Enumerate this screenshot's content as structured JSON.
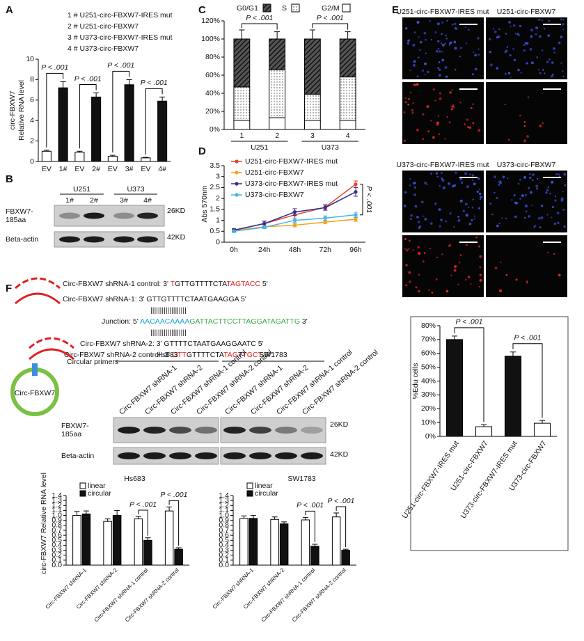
{
  "chart_data": [
    {
      "type": "bar",
      "label": "A",
      "legend": [
        "1 # U251-circ-FBXW7-IRES mut",
        "2 # U251-circ-FBXW7",
        "3 # U373-circ-FBXW7-IRES mut",
        "4 # U373-circ-FBXW7"
      ],
      "ylabel": [
        "circ-FBXW7",
        "Relative RNA level"
      ],
      "categories": [
        "EV",
        "1#",
        "EV",
        "2#",
        "EV",
        "3#",
        "EV",
        "4#"
      ],
      "values": [
        1.0,
        7.2,
        0.9,
        6.3,
        0.5,
        7.5,
        0.35,
        5.9
      ],
      "errors": [
        0.1,
        0.6,
        0.1,
        0.4,
        0.1,
        0.5,
        0.05,
        0.4
      ],
      "colors": [
        "#ffffff",
        "#111111",
        "#ffffff",
        "#111111",
        "#ffffff",
        "#111111",
        "#ffffff",
        "#111111"
      ],
      "ylim": [
        0,
        10
      ],
      "yticks": [
        0,
        2,
        4,
        6,
        8,
        10
      ],
      "annotations": [
        "P < .001",
        "P < .001",
        "P < .001",
        "P < .001"
      ]
    },
    {
      "type": "stacked_bar",
      "label": "C",
      "categories": [
        "1",
        "2",
        "3",
        "4"
      ],
      "groups": [
        "U251",
        "U373"
      ],
      "series": [
        {
          "name": "G0/G1",
          "pattern": "hatch",
          "color": "#333333",
          "values": [
            53,
            34,
            61,
            42
          ],
          "errors": [
            10,
            8,
            10,
            8
          ]
        },
        {
          "name": "S",
          "pattern": "dots",
          "color": "#ffffff",
          "values": [
            37,
            53,
            29,
            48
          ],
          "errors": [
            6,
            8,
            4,
            6
          ]
        },
        {
          "name": "G2/M",
          "pattern": "none",
          "color": "#ffffff",
          "values": [
            10,
            13,
            10,
            10
          ],
          "errors": [
            1,
            2,
            1,
            1
          ]
        }
      ],
      "ylim": [
        0,
        120
      ],
      "yticks": [
        {
          "value": 0,
          "label": "0%"
        },
        {
          "value": 20,
          "label": "20%"
        },
        {
          "value": 40,
          "label": "40%"
        },
        {
          "value": 60,
          "label": "60%"
        },
        {
          "value": 80,
          "label": "80%"
        },
        {
          "value": 100,
          "label": "100%"
        },
        {
          "value": 120,
          "label": "120%"
        }
      ],
      "annotations": [
        "P < .001",
        "P < .001"
      ]
    },
    {
      "type": "line",
      "label": "D",
      "ylabel": "Abs 570nm",
      "categories": [
        "0h",
        "24h",
        "48h",
        "72h",
        "96h"
      ],
      "series": [
        {
          "name": "U251-circ-FBXW7-IRES mut",
          "color": "#e8412c",
          "values": [
            0.55,
            0.85,
            1.25,
            1.6,
            2.65
          ],
          "errors": [
            0.08,
            0.1,
            0.15,
            0.12,
            0.15
          ]
        },
        {
          "name": "U251-circ-FBXW7",
          "color": "#f7a21b",
          "values": [
            0.55,
            0.7,
            0.78,
            0.92,
            1.05
          ],
          "errors": [
            0.05,
            0.06,
            0.08,
            0.08,
            0.1
          ]
        },
        {
          "name": "U373-circ-FBXW7-IRES mut",
          "color": "#2d3194",
          "values": [
            0.55,
            0.85,
            1.38,
            1.58,
            2.3
          ],
          "errors": [
            0.06,
            0.12,
            0.15,
            0.12,
            0.2
          ]
        },
        {
          "name": "U373-circ-FBXW7",
          "color": "#45b3e7",
          "values": [
            0.5,
            0.68,
            1.0,
            1.1,
            1.25
          ],
          "errors": [
            0.05,
            0.06,
            0.1,
            0.1,
            0.12
          ]
        }
      ],
      "ylim": [
        0,
        3.5
      ],
      "yticks": [
        0,
        0.5,
        1,
        1.5,
        2,
        2.5,
        3,
        3.5
      ],
      "annotations": [
        "P < .001"
      ]
    },
    {
      "type": "bar",
      "ylabel": "%Edu cells",
      "categories": [
        "U251-circ-FBXW7-IRES mut",
        "U251-circ-FBXW7",
        "U373-circ-FBXW7-IRES mut",
        "U373-circ-FBXW7"
      ],
      "values": [
        70,
        7,
        58,
        9.5
      ],
      "errors": [
        2.5,
        1.5,
        3,
        2
      ],
      "colors": [
        "#111111",
        "#ffffff",
        "#111111",
        "#ffffff"
      ],
      "ylim": [
        0,
        80
      ],
      "yticks": [
        {
          "value": 0,
          "label": "0%"
        },
        {
          "value": 10,
          "label": "10%"
        },
        {
          "value": 20,
          "label": "20%"
        },
        {
          "value": 30,
          "label": "30%"
        },
        {
          "value": 40,
          "label": "40%"
        },
        {
          "value": 50,
          "label": "50%"
        },
        {
          "value": 60,
          "label": "60%"
        },
        {
          "value": 70,
          "label": "70%"
        },
        {
          "value": 80,
          "label": "80%"
        }
      ],
      "annotations": [
        "P < .001",
        "P < .001"
      ]
    },
    {
      "type": "grouped_bar",
      "title": "Hs683",
      "ylabel": "circ-FBXW7 Relative RNA level",
      "categories": [
        "Circ-FBXW7 shRNA-1",
        "Circ-FBXW7 shRNA-2",
        "Circ-FBXW7 shRNA-1 control",
        "Circ-FBXW7 shRNA-2 control"
      ],
      "series": [
        {
          "name": "linear",
          "color": "#ffffff",
          "values": [
            1.0,
            0.88,
            0.93,
            1.09
          ],
          "errors": [
            0.08,
            0.05,
            0.05,
            0.08
          ]
        },
        {
          "name": "circular",
          "color": "#111111",
          "values": [
            1.03,
            1.0,
            0.5,
            0.32
          ],
          "errors": [
            0.06,
            0.1,
            0.05,
            0.03
          ]
        }
      ],
      "ylim": [
        0,
        1.4
      ],
      "yticks": [
        {
          "value": 0,
          "label": "0.0"
        },
        0.1,
        0.2,
        0.3,
        0.4,
        0.5,
        0.6,
        0.7,
        0.8,
        0.9,
        {
          "value": 1,
          "label": "1.0"
        },
        1.1,
        1.2,
        1.3,
        1.4
      ],
      "annotations": [
        "P < .001",
        "P < .001"
      ]
    },
    {
      "type": "grouped_bar",
      "title": "SW1783",
      "categories": [
        "Circ-FBXW7 shRNA-1",
        "Circ-FBXW7 shRNA-2",
        "Circ-FBXW7 shRNA-1 control",
        "Circ-FBXW7 shRNA-2 control"
      ],
      "series": [
        {
          "name": "linear",
          "color": "#ffffff",
          "values": [
            0.94,
            0.92,
            0.91,
            0.97
          ],
          "errors": [
            0.05,
            0.05,
            0.05,
            0.08
          ]
        },
        {
          "name": "circular",
          "color": "#111111",
          "values": [
            0.94,
            0.83,
            0.38,
            0.3
          ],
          "errors": [
            0.06,
            0.04,
            0.04,
            0.02
          ]
        }
      ],
      "ylim": [
        0,
        1.4
      ],
      "yticks": [
        {
          "value": 0,
          "label": "0.0"
        },
        0.1,
        0.2,
        0.3,
        0.4,
        0.5,
        0.6,
        0.7,
        0.8,
        0.9,
        {
          "value": 1,
          "label": "1.0"
        },
        1.1,
        1.2,
        1.3,
        1.4
      ],
      "annotations": [
        "P < .001",
        "P < .001"
      ]
    }
  ],
  "panel_b": {
    "label": "B",
    "groups": [
      "U251",
      "U373"
    ],
    "lanes": [
      "1#",
      "2#",
      "3#",
      "4#"
    ],
    "rows": [
      {
        "name": [
          "FBXW7-",
          "185aa"
        ],
        "size": "26KD"
      },
      {
        "name": [
          "Beta-actin"
        ],
        "size": "42KD"
      }
    ]
  },
  "panel_e": {
    "label": "E",
    "images": [
      "U251-circ-FBXW7-IRES mut",
      "U251-circ-FBXW7",
      "U373-circ-FBXW7-IRES mut",
      "U373-circ-FBXW7"
    ]
  },
  "panel_f": {
    "label": "F",
    "sequences": [
      [
        {
          "text": "Circ-FBXW7 shRNA-1 control: 3' ",
          "color": "#111111"
        },
        {
          "text": "T",
          "color": "#e02020"
        },
        {
          "text": "GTTGTTTTCTA",
          "color": "#111111"
        },
        {
          "text": "TAGTACC",
          "color": "#e02020"
        },
        {
          "text": " 5'",
          "color": "#111111"
        }
      ],
      [
        {
          "text": "Circ-FBXW7 shRNA-1: 3' GTTGTTTTCTAATGAAGGA 5'",
          "color": "#111111"
        }
      ],
      [
        {
          "text": "|||||||||||||||||||",
          "color": "#111111"
        }
      ],
      [
        {
          "text": "Junction: 5' ",
          "color": "#111111"
        },
        {
          "text": "AACAACAAAA",
          "color": "#1aa6d8"
        },
        {
          "text": "GATTACTTCCTTAGGATAGATTG",
          "color": "#3aa64a"
        },
        {
          "text": " 3'",
          "color": "#111111"
        }
      ],
      [
        {
          "text": "|||||||||||||||||||",
          "color": "#111111"
        }
      ],
      [
        {
          "text": "Circ-FBXW7 shRNA-2: 3' GTTTTCTAATGAAGGAATC 5'",
          "color": "#111111"
        }
      ],
      [
        {
          "text": "Circ-FBXW7 shRNA-2 control: 3' ",
          "color": "#111111"
        },
        {
          "text": "GTT",
          "color": "#e02020"
        },
        {
          "text": "GTTTTCTA",
          "color": "#111111"
        },
        {
          "text": "TAG",
          "color": "#e02020"
        },
        {
          "text": "T",
          "color": "#111111"
        },
        {
          "text": "TGCT",
          "color": "#e02020"
        },
        {
          "text": " 5'",
          "color": "#111111"
        }
      ]
    ],
    "circular_primers": "Circular primers",
    "circle_label": "Circ-FBXW7",
    "blot": {
      "groups": [
        "Hs683",
        "SW1783"
      ],
      "lanes": [
        "Circ-FBXW7 shRNA-1",
        "Circ-FBXW7 shRNA-2",
        "Circ-FBXW7 shRNA-1 control",
        "Circ-FBXW7 shRNA-2 control",
        "Circ-FBXW7 shRNA-1",
        "Circ-FBXW7 shRNA-2",
        "Circ-FBXW7 shRNA-1 control",
        "Circ-FBXW7 shRNA-2 control"
      ],
      "rows": [
        {
          "name": [
            "FBXW7-",
            "185aa"
          ],
          "size": "26KD"
        },
        {
          "name": [
            "Beta-actin"
          ],
          "size": "42KD"
        }
      ]
    }
  }
}
